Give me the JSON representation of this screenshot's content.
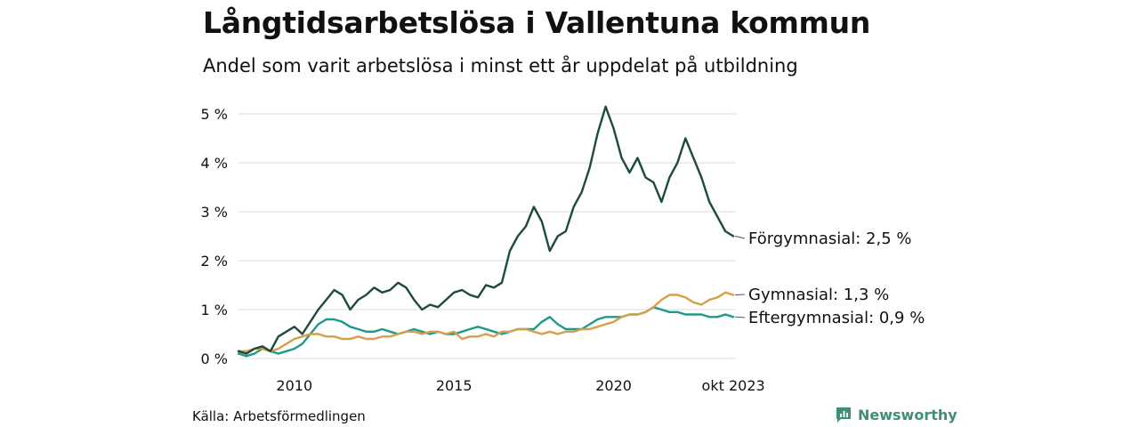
{
  "title": "Långtidsarbetslösa i Vallentuna kommun",
  "subtitle": "Andel som varit arbetslösa i minst ett år uppdelat på utbildning",
  "source": "Källa: Arbetsförmedlingen",
  "brand": "Newsworthy",
  "colors": {
    "forgymnasial": "#1f4a40",
    "gymnasial": "#d4a04a",
    "eftergymnasial": "#1f9a8a",
    "grid": "#dddddd",
    "brand": "#3f8f72"
  },
  "chart_data": {
    "type": "line",
    "title": "Långtidsarbetslösa i Vallentuna kommun",
    "xlabel": "",
    "ylabel": "",
    "xlim": [
      2008.25,
      2023.83
    ],
    "ylim": [
      0,
      5
    ],
    "y_ticks": [
      {
        "value": 0,
        "label": "0 %"
      },
      {
        "value": 1,
        "label": "1 %"
      },
      {
        "value": 2,
        "label": "2 %"
      },
      {
        "value": 3,
        "label": "3 %"
      },
      {
        "value": 4,
        "label": "4 %"
      },
      {
        "value": 5,
        "label": "5 %"
      }
    ],
    "x_ticks": [
      {
        "value": 2010,
        "label": "2010"
      },
      {
        "value": 2015,
        "label": "2015"
      },
      {
        "value": 2020,
        "label": "2020"
      },
      {
        "value": 2023.75,
        "label": "okt 2023"
      }
    ],
    "grid": true,
    "series": [
      {
        "key": "forgymnasial",
        "name": "Förgymnasial",
        "label": "Förgymnasial: 2,5 %",
        "x": [
          2008.25,
          2008.5,
          2008.75,
          2009.0,
          2009.25,
          2009.5,
          2009.75,
          2010.0,
          2010.25,
          2010.5,
          2010.75,
          2011.0,
          2011.25,
          2011.5,
          2011.75,
          2012.0,
          2012.25,
          2012.5,
          2012.75,
          2013.0,
          2013.25,
          2013.5,
          2013.75,
          2014.0,
          2014.25,
          2014.5,
          2014.75,
          2015.0,
          2015.25,
          2015.5,
          2015.75,
          2016.0,
          2016.25,
          2016.5,
          2016.75,
          2017.0,
          2017.25,
          2017.5,
          2017.75,
          2018.0,
          2018.25,
          2018.5,
          2018.75,
          2019.0,
          2019.25,
          2019.5,
          2019.75,
          2020.0,
          2020.25,
          2020.5,
          2020.75,
          2021.0,
          2021.25,
          2021.5,
          2021.75,
          2022.0,
          2022.25,
          2022.5,
          2022.75,
          2023.0,
          2023.25,
          2023.5,
          2023.75
        ],
        "values": [
          0.15,
          0.1,
          0.2,
          0.25,
          0.15,
          0.45,
          0.55,
          0.65,
          0.5,
          0.75,
          1.0,
          1.2,
          1.4,
          1.3,
          1.0,
          1.2,
          1.3,
          1.45,
          1.35,
          1.4,
          1.55,
          1.45,
          1.2,
          1.0,
          1.1,
          1.05,
          1.2,
          1.35,
          1.4,
          1.3,
          1.25,
          1.5,
          1.45,
          1.55,
          2.2,
          2.5,
          2.7,
          3.1,
          2.8,
          2.2,
          2.5,
          2.6,
          3.1,
          3.4,
          3.9,
          4.6,
          5.15,
          4.7,
          4.1,
          3.8,
          4.1,
          3.7,
          3.6,
          3.2,
          3.7,
          4.0,
          4.5,
          4.1,
          3.7,
          3.2,
          2.9,
          2.6,
          2.5
        ]
      },
      {
        "key": "gymnasial",
        "name": "Gymnasial",
        "label": "Gymnasial: 1,3 %",
        "x": [
          2008.25,
          2008.5,
          2008.75,
          2009.0,
          2009.25,
          2009.5,
          2009.75,
          2010.0,
          2010.25,
          2010.5,
          2010.75,
          2011.0,
          2011.25,
          2011.5,
          2011.75,
          2012.0,
          2012.25,
          2012.5,
          2012.75,
          2013.0,
          2013.25,
          2013.5,
          2013.75,
          2014.0,
          2014.25,
          2014.5,
          2014.75,
          2015.0,
          2015.25,
          2015.5,
          2015.75,
          2016.0,
          2016.25,
          2016.5,
          2016.75,
          2017.0,
          2017.25,
          2017.5,
          2017.75,
          2018.0,
          2018.25,
          2018.5,
          2018.75,
          2019.0,
          2019.25,
          2019.5,
          2019.75,
          2020.0,
          2020.25,
          2020.5,
          2020.75,
          2021.0,
          2021.25,
          2021.5,
          2021.75,
          2022.0,
          2022.25,
          2022.5,
          2022.75,
          2023.0,
          2023.25,
          2023.5,
          2023.75
        ],
        "values": [
          0.15,
          0.15,
          0.2,
          0.2,
          0.15,
          0.2,
          0.3,
          0.4,
          0.45,
          0.5,
          0.5,
          0.45,
          0.45,
          0.4,
          0.4,
          0.45,
          0.4,
          0.4,
          0.45,
          0.45,
          0.5,
          0.55,
          0.55,
          0.5,
          0.55,
          0.55,
          0.5,
          0.55,
          0.4,
          0.45,
          0.45,
          0.5,
          0.45,
          0.55,
          0.55,
          0.6,
          0.6,
          0.55,
          0.5,
          0.55,
          0.5,
          0.55,
          0.55,
          0.6,
          0.6,
          0.65,
          0.7,
          0.75,
          0.85,
          0.9,
          0.9,
          0.95,
          1.05,
          1.2,
          1.3,
          1.3,
          1.25,
          1.15,
          1.1,
          1.2,
          1.25,
          1.35,
          1.3
        ]
      },
      {
        "key": "eftergymnasial",
        "name": "Eftergymnasial",
        "label": "Eftergymnasial: 0,9 %",
        "x": [
          2008.25,
          2008.5,
          2008.75,
          2009.0,
          2009.25,
          2009.5,
          2009.75,
          2010.0,
          2010.25,
          2010.5,
          2010.75,
          2011.0,
          2011.25,
          2011.5,
          2011.75,
          2012.0,
          2012.25,
          2012.5,
          2012.75,
          2013.0,
          2013.25,
          2013.5,
          2013.75,
          2014.0,
          2014.25,
          2014.5,
          2014.75,
          2015.0,
          2015.25,
          2015.5,
          2015.75,
          2016.0,
          2016.25,
          2016.5,
          2016.75,
          2017.0,
          2017.25,
          2017.5,
          2017.75,
          2018.0,
          2018.25,
          2018.5,
          2018.75,
          2019.0,
          2019.25,
          2019.5,
          2019.75,
          2020.0,
          2020.25,
          2020.5,
          2020.75,
          2021.0,
          2021.25,
          2021.5,
          2021.75,
          2022.0,
          2022.25,
          2022.5,
          2022.75,
          2023.0,
          2023.25,
          2023.5,
          2023.75
        ],
        "values": [
          0.1,
          0.05,
          0.1,
          0.2,
          0.15,
          0.1,
          0.15,
          0.2,
          0.3,
          0.5,
          0.7,
          0.8,
          0.8,
          0.75,
          0.65,
          0.6,
          0.55,
          0.55,
          0.6,
          0.55,
          0.5,
          0.55,
          0.6,
          0.55,
          0.5,
          0.55,
          0.5,
          0.5,
          0.55,
          0.6,
          0.65,
          0.6,
          0.55,
          0.5,
          0.55,
          0.6,
          0.6,
          0.6,
          0.75,
          0.85,
          0.7,
          0.6,
          0.6,
          0.6,
          0.7,
          0.8,
          0.85,
          0.85,
          0.85,
          0.9,
          0.9,
          0.95,
          1.05,
          1.0,
          0.95,
          0.95,
          0.9,
          0.9,
          0.9,
          0.85,
          0.85,
          0.9,
          0.85
        ]
      }
    ]
  }
}
